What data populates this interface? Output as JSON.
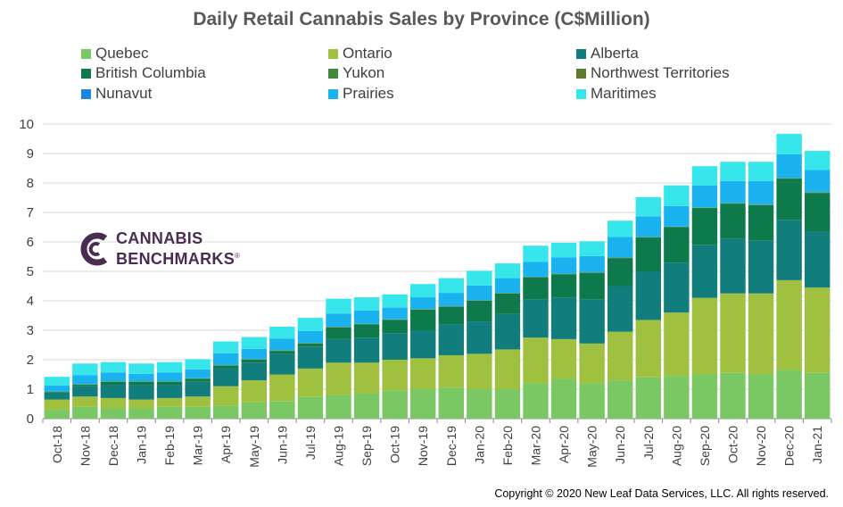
{
  "chart_data": {
    "type": "bar",
    "stacked": true,
    "title": "Daily Retail Cannabis Sales by Province (C$Million)",
    "xlabel": "",
    "ylabel": "",
    "ylim": [
      0,
      10
    ],
    "yticks": [
      0,
      1,
      2,
      3,
      4,
      5,
      6,
      7,
      8,
      9,
      10
    ],
    "grid": true,
    "legend_position": "top",
    "categories": [
      "Oct-18",
      "Nov-18",
      "Dec-18",
      "Jan-19",
      "Feb-19",
      "Mar-19",
      "Apr-19",
      "May-19",
      "Jun-19",
      "Jul-19",
      "Aug-19",
      "Sep-19",
      "Oct-19",
      "Nov-19",
      "Dec-19",
      "Jan-20",
      "Feb-20",
      "Mar-20",
      "Apr-20",
      "May-20",
      "Jun-20",
      "Jul-20",
      "Aug-20",
      "Sep-20",
      "Oct-20",
      "Nov-20",
      "Dec-20",
      "Jan-21"
    ],
    "series": [
      {
        "name": "Quebec",
        "color": "#7ac863",
        "values": [
          0.3,
          0.4,
          0.35,
          0.35,
          0.4,
          0.4,
          0.45,
          0.55,
          0.6,
          0.75,
          0.8,
          0.85,
          0.95,
          1.0,
          1.05,
          1.0,
          1.0,
          1.2,
          1.35,
          1.2,
          1.3,
          1.4,
          1.45,
          1.5,
          1.55,
          1.5,
          1.65,
          1.55
        ]
      },
      {
        "name": "Ontario",
        "color": "#a0c040",
        "values": [
          0.35,
          0.35,
          0.35,
          0.3,
          0.3,
          0.35,
          0.65,
          0.75,
          0.9,
          0.95,
          1.1,
          1.05,
          1.05,
          1.05,
          1.1,
          1.2,
          1.35,
          1.55,
          1.35,
          1.35,
          1.65,
          1.95,
          2.15,
          2.6,
          2.7,
          2.75,
          3.05,
          2.9
        ]
      },
      {
        "name": "Alberta",
        "color": "#127d7d",
        "values": [
          0.2,
          0.35,
          0.45,
          0.5,
          0.45,
          0.5,
          0.6,
          0.6,
          0.7,
          0.75,
          0.8,
          0.85,
          0.9,
          0.95,
          1.05,
          1.1,
          1.2,
          1.3,
          1.4,
          1.5,
          1.55,
          1.65,
          1.7,
          1.8,
          1.85,
          1.8,
          2.05,
          1.9
        ]
      },
      {
        "name": "British Columbia",
        "color": "#0e7a4c",
        "values": [
          0.05,
          0.05,
          0.1,
          0.1,
          0.1,
          0.1,
          0.1,
          0.1,
          0.1,
          0.1,
          0.4,
          0.45,
          0.45,
          0.7,
          0.6,
          0.7,
          0.7,
          0.75,
          0.8,
          0.9,
          0.95,
          1.15,
          1.2,
          1.25,
          1.2,
          1.2,
          1.4,
          1.3
        ]
      },
      {
        "name": "Yukon",
        "color": "#3e8a3a",
        "values": [
          0.01,
          0.01,
          0.01,
          0.01,
          0.01,
          0.01,
          0.01,
          0.01,
          0.01,
          0.01,
          0.01,
          0.01,
          0.01,
          0.01,
          0.01,
          0.01,
          0.01,
          0.01,
          0.01,
          0.01,
          0.01,
          0.01,
          0.01,
          0.01,
          0.01,
          0.01,
          0.01,
          0.02
        ]
      },
      {
        "name": "Northwest Territories",
        "color": "#5e7a2c",
        "values": [
          0.01,
          0.01,
          0.01,
          0.01,
          0.01,
          0.01,
          0.01,
          0.01,
          0.01,
          0.01,
          0.01,
          0.01,
          0.01,
          0.01,
          0.01,
          0.01,
          0.01,
          0.01,
          0.01,
          0.01,
          0.01,
          0.01,
          0.01,
          0.01,
          0.01,
          0.01,
          0.01,
          0.02
        ]
      },
      {
        "name": "Nunavut",
        "color": "#1f86e0",
        "values": [
          0,
          0,
          0,
          0,
          0,
          0,
          0,
          0,
          0,
          0,
          0,
          0,
          0,
          0,
          0,
          0,
          0,
          0,
          0,
          0,
          0,
          0,
          0,
          0,
          0,
          0,
          0,
          0
        ]
      },
      {
        "name": "Prairies",
        "color": "#1ab3f0",
        "values": [
          0.2,
          0.3,
          0.3,
          0.25,
          0.3,
          0.3,
          0.4,
          0.35,
          0.4,
          0.4,
          0.45,
          0.45,
          0.4,
          0.4,
          0.45,
          0.5,
          0.5,
          0.5,
          0.55,
          0.55,
          0.7,
          0.7,
          0.7,
          0.75,
          0.75,
          0.8,
          0.8,
          0.75
        ]
      },
      {
        "name": "Maritimes",
        "color": "#36e6ea",
        "values": [
          0.3,
          0.4,
          0.35,
          0.35,
          0.35,
          0.35,
          0.4,
          0.4,
          0.4,
          0.45,
          0.5,
          0.45,
          0.45,
          0.45,
          0.5,
          0.5,
          0.5,
          0.55,
          0.5,
          0.5,
          0.55,
          0.65,
          0.7,
          0.65,
          0.65,
          0.65,
          0.7,
          0.65
        ]
      }
    ]
  },
  "logo": {
    "line1": "CANNABIS",
    "line2": "BENCHMARKS",
    "mark": "®"
  },
  "copyright": "Copyright © 2020 New Leaf Data Services, LLC. All rights reserved."
}
